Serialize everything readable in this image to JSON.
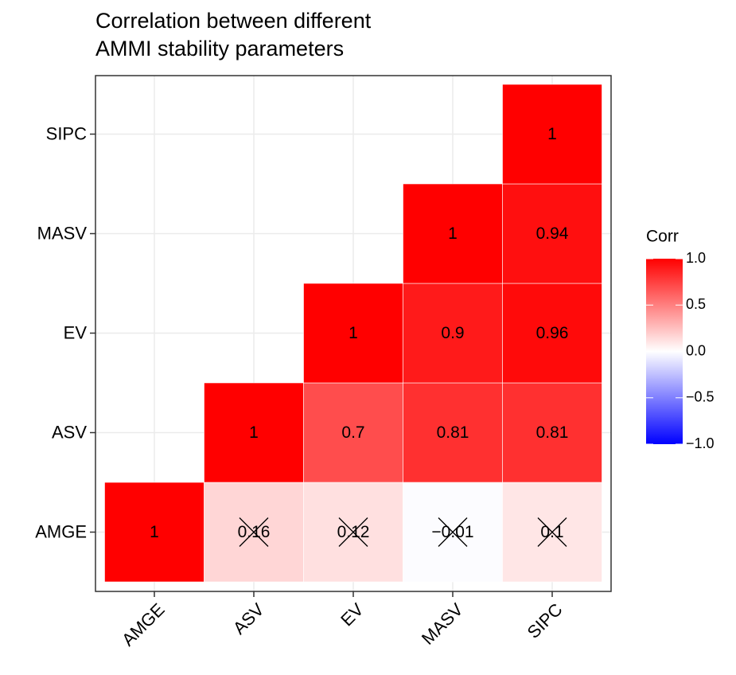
{
  "chart_data": {
    "type": "heatmap",
    "title": [
      "Correlation between different",
      "AMMI stability parameters"
    ],
    "x_categories": [
      "AMGE",
      "ASV",
      "EV",
      "MASV",
      "SIPC"
    ],
    "y_categories": [
      "AMGE",
      "ASV",
      "EV",
      "MASV",
      "SIPC"
    ],
    "values": [
      [
        1,
        0.16,
        0.12,
        -0.01,
        0.1
      ],
      [
        null,
        1,
        0.7,
        0.81,
        0.81
      ],
      [
        null,
        null,
        1,
        0.9,
        0.96
      ],
      [
        null,
        null,
        null,
        1,
        0.94
      ],
      [
        null,
        null,
        null,
        null,
        1
      ]
    ],
    "value_labels": [
      [
        "1",
        "0.16",
        "0.12",
        "−0.01",
        "0.1"
      ],
      [
        null,
        "1",
        "0.7",
        "0.81",
        "0.81"
      ],
      [
        null,
        null,
        "1",
        "0.9",
        "0.96"
      ],
      [
        null,
        null,
        null,
        "1",
        "0.94"
      ],
      [
        null,
        null,
        null,
        null,
        "1"
      ]
    ],
    "insignificant": [
      [
        false,
        true,
        true,
        true,
        true
      ],
      [
        null,
        false,
        false,
        false,
        false
      ],
      [
        null,
        null,
        false,
        false,
        false
      ],
      [
        null,
        null,
        null,
        false,
        false
      ],
      [
        null,
        null,
        null,
        null,
        false
      ]
    ],
    "legend_title": "Corr",
    "clim": [
      -1,
      1
    ],
    "cticks": [
      {
        "value": 1,
        "label": "1.0"
      },
      {
        "value": 0.5,
        "label": "0.5"
      },
      {
        "value": 0,
        "label": "0.0"
      },
      {
        "value": -0.5,
        "label": "−0.5"
      },
      {
        "value": -1,
        "label": "−1.0"
      }
    ],
    "colors": {
      "low": "#0000ff",
      "mid": "#ffffff",
      "high": "#ff0000"
    },
    "grid": true
  }
}
